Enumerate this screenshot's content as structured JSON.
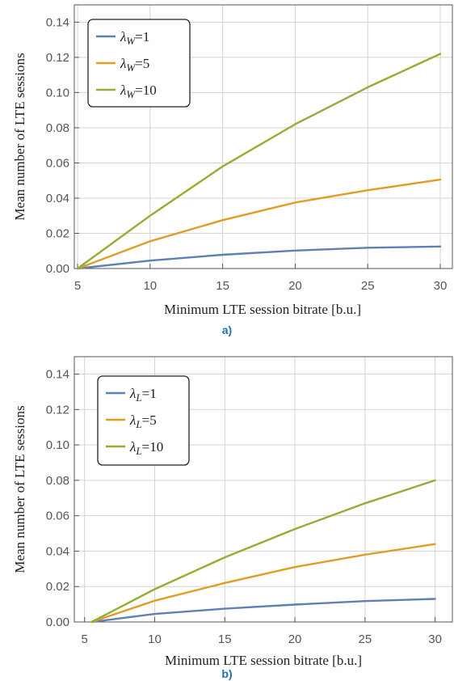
{
  "chart_data": [
    {
      "type": "line",
      "panel_label": "a)",
      "xlabel": "Minimum LTE session bitrate [b.u.]",
      "ylabel": "Mean number of LTE sessions",
      "xlim": [
        5,
        30.5
      ],
      "ylim": [
        0,
        0.148
      ],
      "xticks": [
        5,
        10,
        15,
        20,
        25,
        30
      ],
      "yticks": [
        0.0,
        0.02,
        0.04,
        0.06,
        0.08,
        0.1,
        0.12,
        0.14
      ],
      "ytick_labels": [
        "0.00",
        "0.02",
        "0.04",
        "0.06",
        "0.08",
        "0.10",
        "0.12",
        "0.14"
      ],
      "grid": true,
      "legend_position": "top-left",
      "x": [
        5,
        10,
        15,
        20,
        25,
        30
      ],
      "series": [
        {
          "name": "λW=1",
          "legend_symbol": "λ",
          "legend_sub": "W",
          "legend_value": "=1",
          "color": "#5e81b5",
          "values": [
            0.0,
            0.0045,
            0.0078,
            0.0102,
            0.0118,
            0.0125
          ]
        },
        {
          "name": "λW=5",
          "legend_symbol": "λ",
          "legend_sub": "W",
          "legend_value": "=5",
          "color": "#e19c24",
          "values": [
            0.0,
            0.0155,
            0.0275,
            0.0375,
            0.0445,
            0.0505
          ]
        },
        {
          "name": "λW=10",
          "legend_symbol": "λ",
          "legend_sub": "W",
          "legend_value": "=10",
          "color": "#8fb032",
          "values": [
            0.0,
            0.03,
            0.058,
            0.082,
            0.103,
            0.122
          ]
        }
      ]
    },
    {
      "type": "line",
      "panel_label": "b)",
      "xlabel": "Minimum LTE session bitrate [b.u.]",
      "ylabel": "Mean number of LTE sessions",
      "xlim": [
        4.5,
        31
      ],
      "ylim": [
        0,
        0.148
      ],
      "xticks": [
        5,
        10,
        15,
        20,
        25,
        30
      ],
      "yticks": [
        0.0,
        0.02,
        0.04,
        0.06,
        0.08,
        0.1,
        0.12,
        0.14
      ],
      "ytick_labels": [
        "0.00",
        "0.02",
        "0.04",
        "0.06",
        "0.08",
        "0.10",
        "0.12",
        "0.14"
      ],
      "grid": true,
      "legend_position": "top-left",
      "x": [
        5.5,
        10,
        15,
        20,
        25,
        30
      ],
      "series": [
        {
          "name": "λL=1",
          "legend_symbol": "λ",
          "legend_sub": "L",
          "legend_value": "=1",
          "color": "#5e81b5",
          "values": [
            0.0,
            0.0045,
            0.0075,
            0.0098,
            0.0118,
            0.013
          ]
        },
        {
          "name": "λL=5",
          "legend_symbol": "λ",
          "legend_sub": "L",
          "legend_value": "=5",
          "color": "#e19c24",
          "values": [
            0.0,
            0.012,
            0.022,
            0.031,
            0.038,
            0.044
          ]
        },
        {
          "name": "λL=10",
          "legend_symbol": "λ",
          "legend_sub": "L",
          "legend_value": "=10",
          "color": "#8fb032",
          "values": [
            0.0,
            0.0185,
            0.0365,
            0.0525,
            0.067,
            0.08
          ]
        }
      ]
    }
  ]
}
